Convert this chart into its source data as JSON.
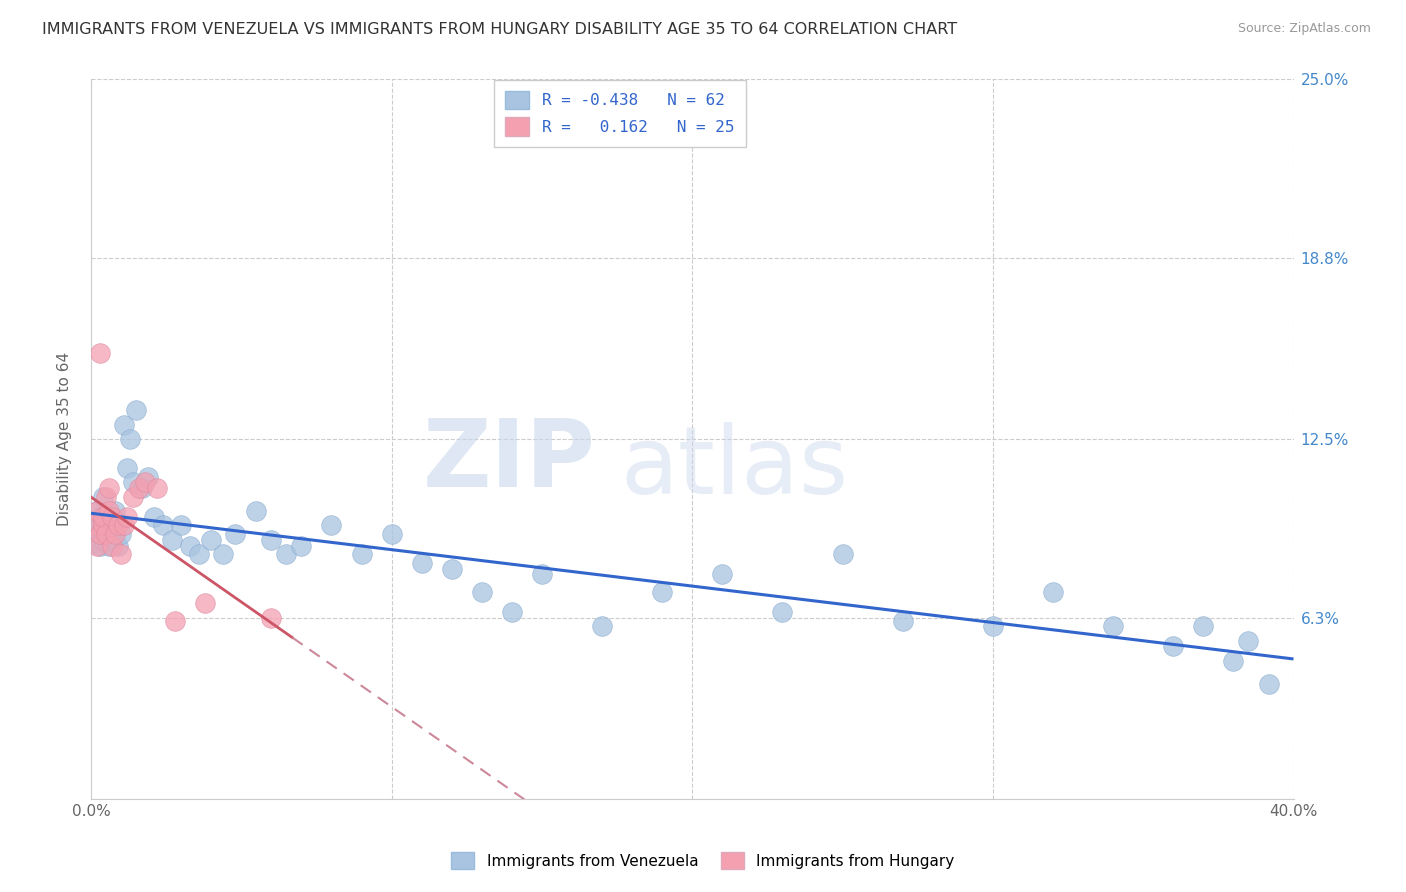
{
  "title": "IMMIGRANTS FROM VENEZUELA VS IMMIGRANTS FROM HUNGARY DISABILITY AGE 35 TO 64 CORRELATION CHART",
  "source": "Source: ZipAtlas.com",
  "ylabel": "Disability Age 35 to 64",
  "xlim": [
    0.0,
    0.4
  ],
  "ylim": [
    0.0,
    0.25
  ],
  "venezuela_color": "#a8c4e0",
  "hungary_color": "#f4a0b0",
  "venezuela_R": -0.438,
  "venezuela_N": 62,
  "hungary_R": 0.162,
  "hungary_N": 25,
  "venezuela_line_color": "#3366cc",
  "hungary_line_solid_color": "#cc5566",
  "hungary_line_dash_color": "#cc8899",
  "watermark_zip": "ZIP",
  "watermark_atlas": "atlas",
  "ven_x": [
    0.001,
    0.001,
    0.002,
    0.002,
    0.003,
    0.003,
    0.003,
    0.004,
    0.004,
    0.005,
    0.005,
    0.006,
    0.006,
    0.007,
    0.007,
    0.008,
    0.008,
    0.009,
    0.009,
    0.01,
    0.011,
    0.012,
    0.013,
    0.014,
    0.015,
    0.017,
    0.019,
    0.021,
    0.024,
    0.027,
    0.03,
    0.033,
    0.036,
    0.04,
    0.044,
    0.048,
    0.055,
    0.06,
    0.065,
    0.07,
    0.08,
    0.09,
    0.1,
    0.11,
    0.12,
    0.13,
    0.14,
    0.15,
    0.17,
    0.19,
    0.21,
    0.23,
    0.25,
    0.27,
    0.3,
    0.32,
    0.34,
    0.36,
    0.37,
    0.38,
    0.385,
    0.392
  ],
  "ven_y": [
    0.089,
    0.095,
    0.093,
    0.1,
    0.088,
    0.095,
    0.098,
    0.09,
    0.105,
    0.092,
    0.096,
    0.088,
    0.094,
    0.091,
    0.097,
    0.1,
    0.093,
    0.088,
    0.096,
    0.092,
    0.13,
    0.115,
    0.125,
    0.11,
    0.135,
    0.108,
    0.112,
    0.098,
    0.095,
    0.09,
    0.095,
    0.088,
    0.085,
    0.09,
    0.085,
    0.092,
    0.1,
    0.09,
    0.085,
    0.088,
    0.095,
    0.085,
    0.092,
    0.082,
    0.08,
    0.072,
    0.065,
    0.078,
    0.06,
    0.072,
    0.078,
    0.065,
    0.085,
    0.062,
    0.06,
    0.072,
    0.06,
    0.053,
    0.06,
    0.048,
    0.055,
    0.04
  ],
  "hun_x": [
    0.001,
    0.002,
    0.002,
    0.003,
    0.003,
    0.004,
    0.004,
    0.005,
    0.005,
    0.006,
    0.006,
    0.007,
    0.007,
    0.008,
    0.009,
    0.01,
    0.011,
    0.012,
    0.014,
    0.016,
    0.018,
    0.022,
    0.028,
    0.038,
    0.06
  ],
  "hun_y": [
    0.095,
    0.1,
    0.088,
    0.092,
    0.155,
    0.095,
    0.098,
    0.105,
    0.092,
    0.108,
    0.1,
    0.088,
    0.098,
    0.092,
    0.095,
    0.085,
    0.095,
    0.098,
    0.105,
    0.108,
    0.11,
    0.108,
    0.062,
    0.068,
    0.063
  ]
}
